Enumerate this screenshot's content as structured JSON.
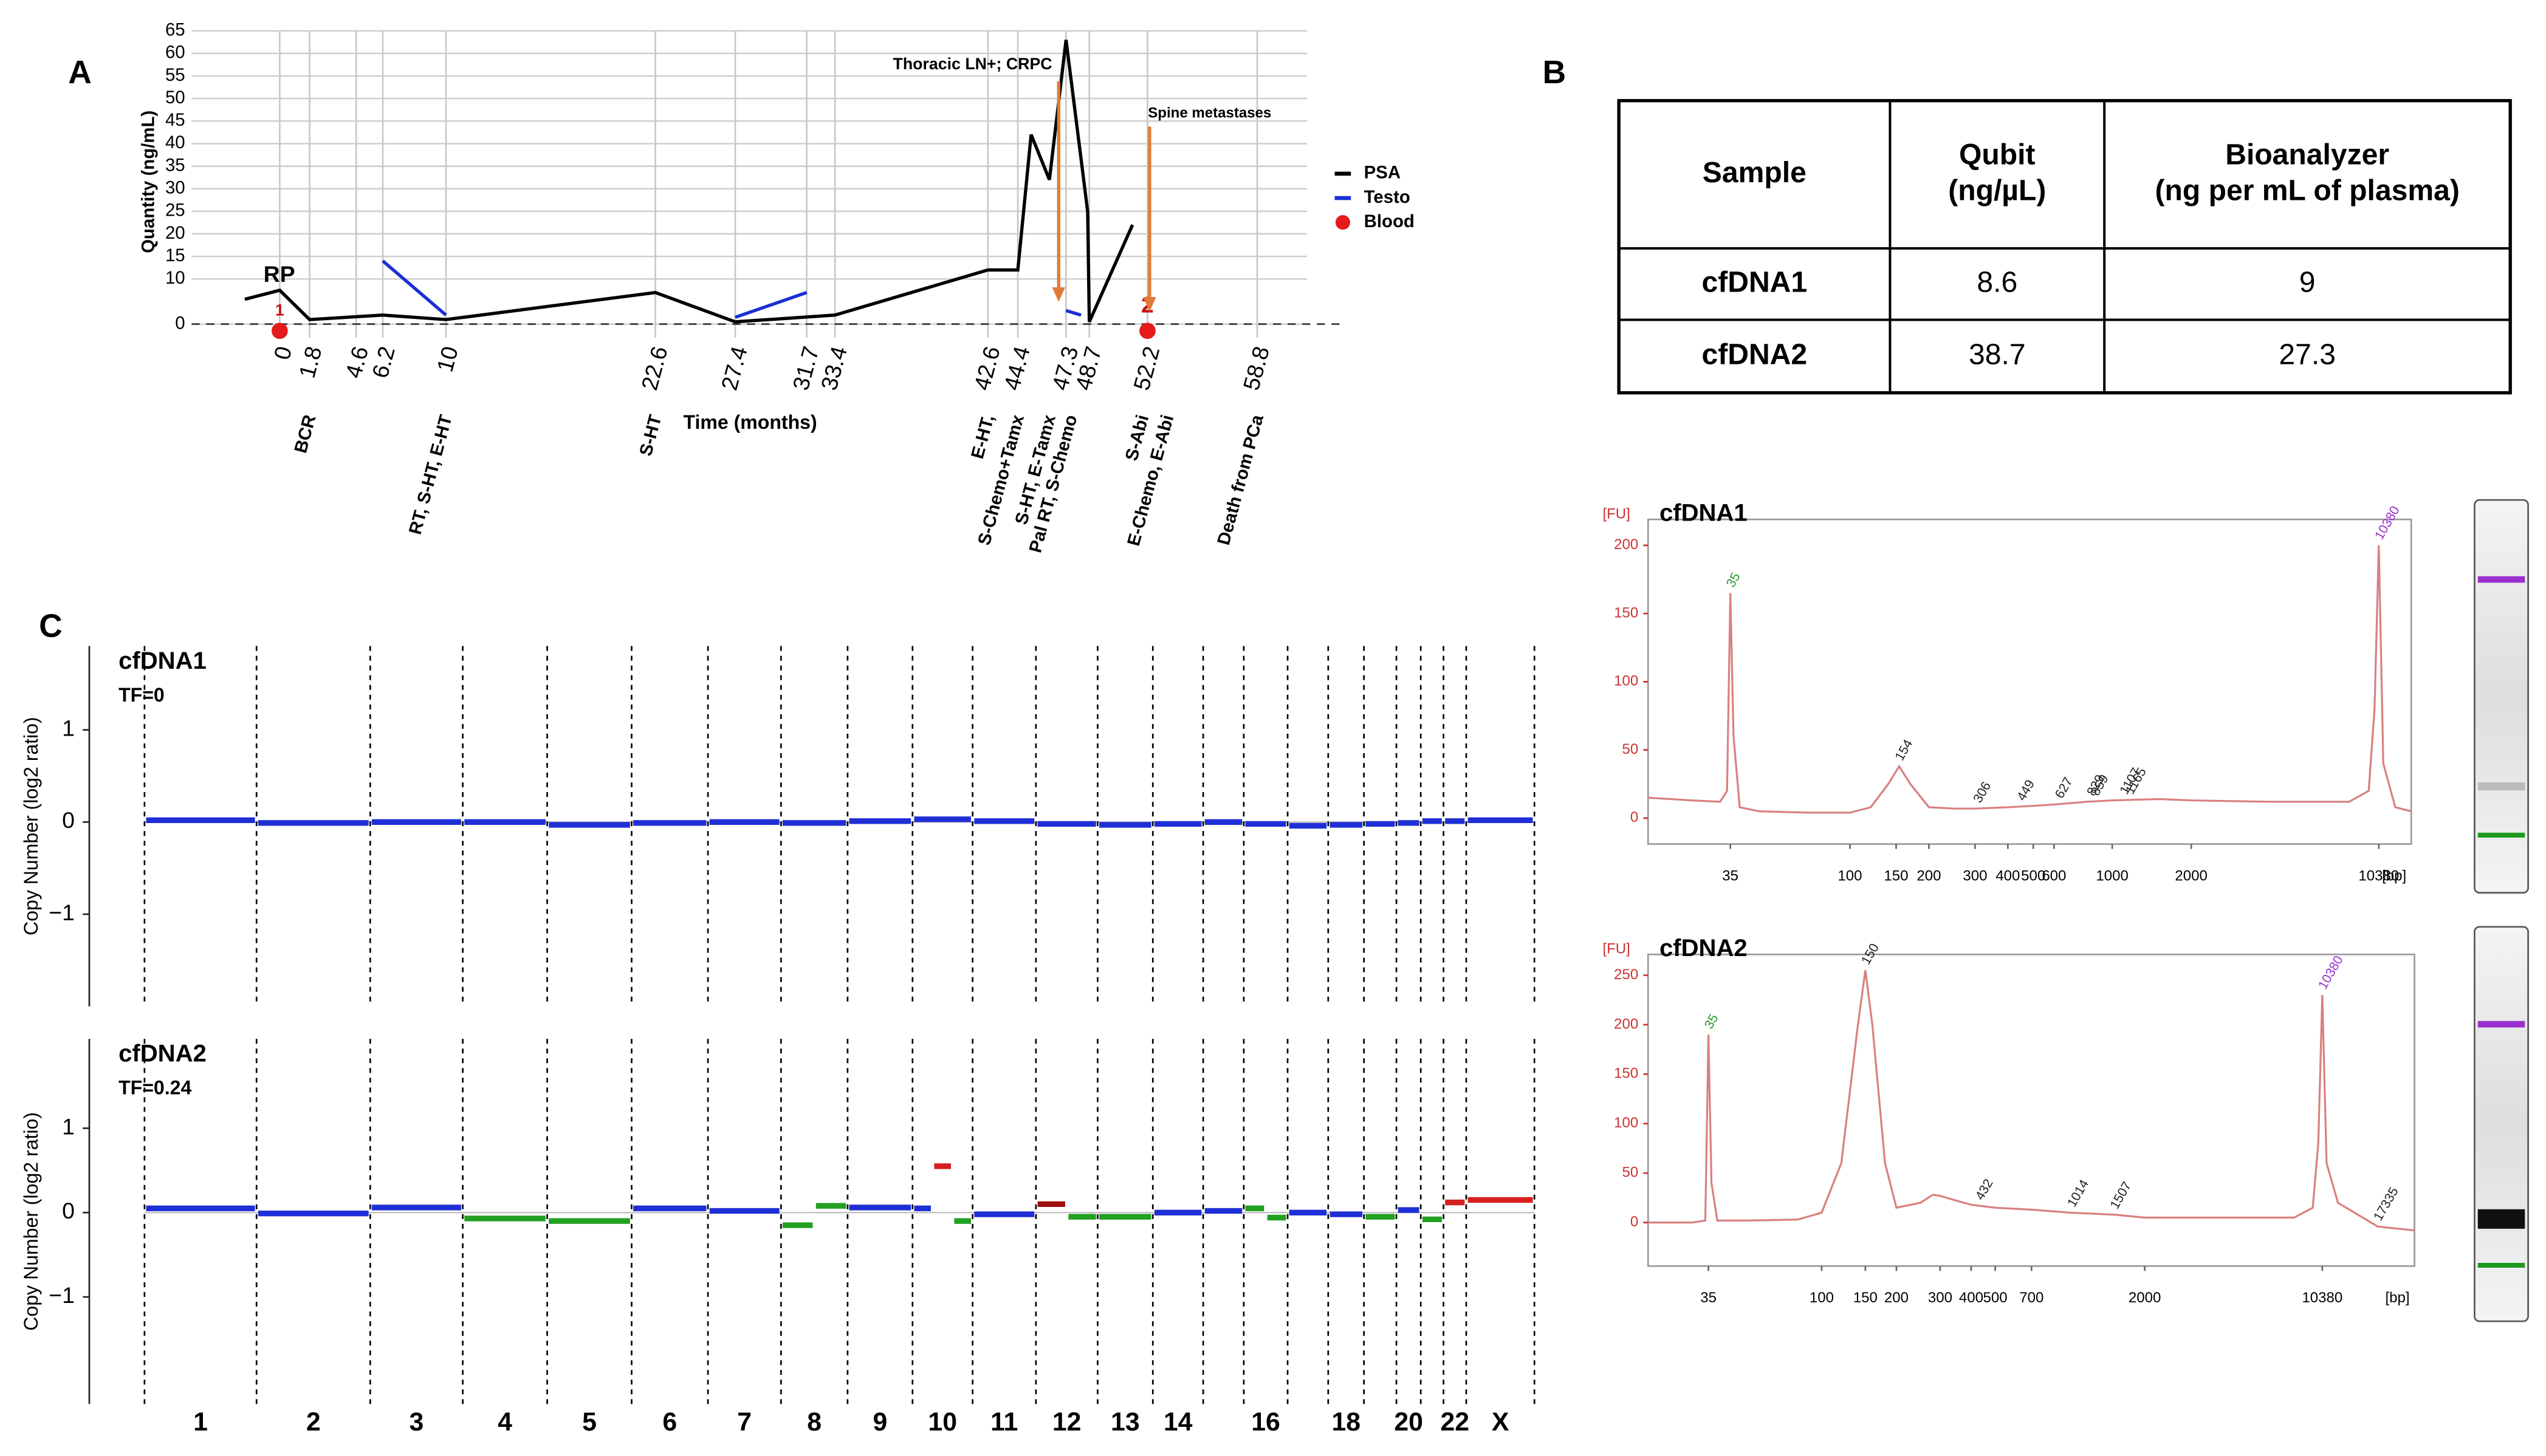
{
  "panels": [
    "A",
    "B",
    "C"
  ],
  "table": {
    "header": [
      [
        "Sample"
      ],
      [
        "Qubit",
        "(ng/µL)"
      ],
      [
        "Bioanalyzer",
        "(ng per mL of plasma)"
      ]
    ],
    "rows": [
      [
        "cfDNA1",
        "8.6",
        "9"
      ],
      [
        "cfDNA2",
        "38.7",
        "27.3"
      ]
    ]
  },
  "chart_data": [
    {
      "type": "line",
      "x_label": "Time (months)",
      "y_label": "Quantity (ng/mL)",
      "xlim": [
        -5.3,
        61.8
      ],
      "ylim": [
        -3,
        65
      ],
      "xticks": [
        0,
        1.8,
        4.6,
        6.2,
        10,
        22.6,
        27.4,
        31.7,
        33.4,
        42.6,
        44.4,
        47.3,
        48.7,
        52.2,
        58.8
      ],
      "yticks": [
        0,
        10,
        15,
        20,
        25,
        30,
        35,
        40,
        45,
        50,
        55,
        60,
        65
      ],
      "grid": true,
      "legend": "right",
      "series": [
        {
          "name": "PSA",
          "type": "line",
          "color": "#000000",
          "x": [
            -2.1,
            0,
            1.8,
            6.2,
            10,
            22.6,
            27.4,
            33.4,
            42.6,
            44.4,
            45.2,
            46.3,
            47.3,
            48.6,
            48.7,
            51.3
          ],
          "values": [
            5.5,
            7.5,
            1,
            2,
            1,
            7,
            0.5,
            2,
            12,
            12,
            42,
            32,
            63,
            25,
            0.5,
            22
          ]
        },
        {
          "name": "Testo",
          "type": "line",
          "color": "#1a2fd6",
          "x": [
            6.2,
            10,
            null,
            27.4,
            31.7,
            null,
            47.3,
            48.2
          ],
          "values": [
            14,
            2,
            null,
            1.5,
            7,
            null,
            3,
            2
          ]
        },
        {
          "name": "Blood",
          "type": "scatter",
          "color": "#e41a1c",
          "x": [
            0,
            52.2
          ],
          "values": [
            -1.5,
            -1.5
          ],
          "labels": [
            "1",
            "2"
          ]
        }
      ],
      "annotations": [
        "RP",
        "Thoracic LN+; CRPC",
        "Spine metastases"
      ],
      "events": [
        {
          "x": 1.8,
          "label": "BCR"
        },
        {
          "x": 10,
          "label": "RT, S-HT, E-HT"
        },
        {
          "x": 22.6,
          "label": "S-HT"
        },
        {
          "x": 42.6,
          "label": "E-HT,"
        },
        {
          "x": 44.4,
          "label": "S-Chemo+Tamx"
        },
        {
          "x": 46.3,
          "label": "S-HT, E-Tamx"
        },
        {
          "x": 47.6,
          "label": "Pal RT, S-Chemo"
        },
        {
          "x": 51.9,
          "label": "S-Abi"
        },
        {
          "x": 53.4,
          "label": "E-Chemo, E-Abi"
        },
        {
          "x": 58.8,
          "label": "Death from PCa"
        }
      ]
    },
    {
      "type": "line",
      "title": "cfDNA1",
      "y_unit": "[FU]",
      "x_unit": "[bp]",
      "xscale": "log",
      "color": "#d98080",
      "xlim": [
        17,
        13800
      ],
      "ylim": [
        -19,
        219
      ],
      "xticks": [
        35,
        100,
        150,
        200,
        300,
        400,
        500,
        600,
        1000,
        2000,
        10380
      ],
      "yticks": [
        0,
        50,
        100,
        150,
        200
      ],
      "x": [
        17,
        25,
        32,
        34,
        35,
        36,
        38,
        45,
        70,
        100,
        120,
        140,
        154,
        170,
        200,
        250,
        300,
        400,
        500,
        600,
        800,
        1000,
        1500,
        2000,
        4000,
        8000,
        9500,
        10000,
        10380,
        10800,
        12000,
        13800
      ],
      "values": [
        15,
        13,
        12,
        20,
        165,
        60,
        8,
        5,
        4,
        4,
        8,
        25,
        38,
        25,
        8,
        7,
        7,
        8,
        9,
        10,
        12,
        13,
        14,
        13,
        12,
        12,
        20,
        80,
        200,
        40,
        8,
        5
      ],
      "peaks": [
        35,
        154,
        306,
        449,
        627,
        829,
        859,
        1107,
        1165,
        10380
      ],
      "peak_colors": [
        "#2a9a2a",
        "#222222",
        "#222222",
        "#222222",
        "#222222",
        "#222222",
        "#222222",
        "#222222",
        "#222222",
        "#9b30d0"
      ]
    },
    {
      "type": "line",
      "title": "cfDNA2",
      "y_unit": "[FU]",
      "x_unit": "[bp]",
      "xscale": "log",
      "color": "#d98080",
      "xlim": [
        20,
        24400
      ],
      "ylim": [
        -44,
        271
      ],
      "xticks": [
        35,
        100,
        150,
        200,
        300,
        400,
        500,
        700,
        2000,
        10380
      ],
      "yticks": [
        0,
        50,
        100,
        150,
        200,
        250
      ],
      "x": [
        20,
        30,
        34,
        35,
        36,
        38,
        50,
        80,
        100,
        120,
        140,
        150,
        160,
        180,
        200,
        250,
        280,
        300,
        350,
        400,
        500,
        700,
        1000,
        1500,
        2000,
        4000,
        8000,
        9500,
        10000,
        10380,
        10800,
        12000,
        17335,
        24400
      ],
      "values": [
        0,
        0,
        2,
        190,
        40,
        2,
        2,
        3,
        10,
        60,
        200,
        255,
        200,
        60,
        15,
        20,
        28,
        27,
        22,
        18,
        15,
        13,
        10,
        8,
        5,
        5,
        5,
        15,
        80,
        230,
        60,
        20,
        -4,
        -8
      ],
      "peaks": [
        35,
        150,
        432,
        1014,
        1507,
        10380,
        17335
      ],
      "peak_colors": [
        "#2a9a2a",
        "#222222",
        "#222222",
        "#222222",
        "#222222",
        "#9b30d0",
        "#222222"
      ]
    },
    {
      "type": "segment",
      "title": "cfDNA1",
      "subtitle": "TF=0",
      "y_label": "Copy Number (log2 ratio)",
      "ylim": [
        -2,
        1.91
      ],
      "yticks": [
        1,
        0,
        {
          "value": -1,
          "label": "−1"
        }
      ],
      "segments": [
        [
          0.02
        ],
        [
          -0.01
        ],
        [
          0.0
        ],
        [
          0.0
        ],
        [
          -0.03
        ],
        [
          -0.01
        ],
        [
          0.0
        ],
        [
          -0.01
        ],
        [
          0.01
        ],
        [
          0.03
        ],
        [
          0.01
        ],
        [
          -0.02
        ],
        [
          -0.03
        ],
        [
          -0.02
        ],
        [
          0.0
        ],
        [
          -0.02
        ],
        [
          -0.04
        ],
        [
          -0.03
        ],
        [
          -0.02
        ],
        [
          -0.01
        ],
        [
          0.01
        ],
        [
          0.01
        ],
        [
          0.02
        ]
      ],
      "segment_colors": [
        [
          "#1f2fd6"
        ],
        [
          "#1f2fd6"
        ],
        [
          "#1f2fd6"
        ],
        [
          "#1f2fd6"
        ],
        [
          "#1f2fd6"
        ],
        [
          "#1f2fd6"
        ],
        [
          "#1f2fd6"
        ],
        [
          "#1f2fd6"
        ],
        [
          "#1f2fd6"
        ],
        [
          "#1f2fd6"
        ],
        [
          "#1f2fd6"
        ],
        [
          "#1f2fd6"
        ],
        [
          "#1f2fd6"
        ],
        [
          "#1f2fd6"
        ],
        [
          "#1f2fd6"
        ],
        [
          "#1f2fd6"
        ],
        [
          "#1f2fd6"
        ],
        [
          "#1f2fd6"
        ],
        [
          "#1f2fd6"
        ],
        [
          "#1f2fd6"
        ],
        [
          "#1f2fd6"
        ],
        [
          "#1f2fd6"
        ],
        [
          "#1f2fd6"
        ]
      ]
    },
    {
      "type": "segment",
      "title": "cfDNA2",
      "subtitle": "TF=0.24",
      "y_label": "Copy Number (log2 ratio)",
      "ylim": [
        -2.27,
        2.06
      ],
      "yticks": [
        1,
        0,
        {
          "value": -1,
          "label": "−1"
        }
      ],
      "categories": [
        "1",
        "2",
        "3",
        "4",
        "5",
        "6",
        "7",
        "8",
        "9",
        "10",
        "11",
        "12",
        "13",
        "14",
        null,
        "16",
        null,
        "18",
        null,
        "20",
        null,
        "22",
        "X"
      ],
      "segments": [
        [
          0.05
        ],
        [
          -0.01
        ],
        [
          0.06
        ],
        [
          -0.07
        ],
        [
          -0.1
        ],
        [
          0.05
        ],
        [
          0.02
        ],
        [
          -0.15,
          0.08
        ],
        [
          0.06
        ],
        [
          0.05,
          0.55,
          -0.1
        ],
        [
          -0.02
        ],
        [
          0.1,
          -0.05
        ],
        [
          -0.05
        ],
        [
          0.0
        ],
        [
          0.02
        ],
        [
          0.05,
          -0.06
        ],
        [
          0.0
        ],
        [
          -0.02
        ],
        [
          -0.05
        ],
        [
          0.03
        ],
        [
          -0.08
        ],
        [
          0.12
        ],
        [
          0.15
        ]
      ],
      "segment_colors": [
        [
          "#1f2fd6"
        ],
        [
          "#1f2fd6"
        ],
        [
          "#1f2fd6"
        ],
        [
          "#22a022"
        ],
        [
          "#22a022"
        ],
        [
          "#1f2fd6"
        ],
        [
          "#1f2fd6"
        ],
        [
          "#22a022",
          "#22a022"
        ],
        [
          "#1f2fd6"
        ],
        [
          "#1f2fd6",
          "#d42020",
          "#22a022"
        ],
        [
          "#1f2fd6"
        ],
        [
          "#a01010",
          "#22a022"
        ],
        [
          "#22a022"
        ],
        [
          "#1f2fd6"
        ],
        [
          "#1f2fd6"
        ],
        [
          "#22a022",
          "#22a022"
        ],
        [
          "#1f2fd6"
        ],
        [
          "#1f2fd6"
        ],
        [
          "#22a022"
        ],
        [
          "#1f2fd6"
        ],
        [
          "#22a022"
        ],
        [
          "#d42020"
        ],
        [
          "#d42020"
        ]
      ]
    }
  ]
}
